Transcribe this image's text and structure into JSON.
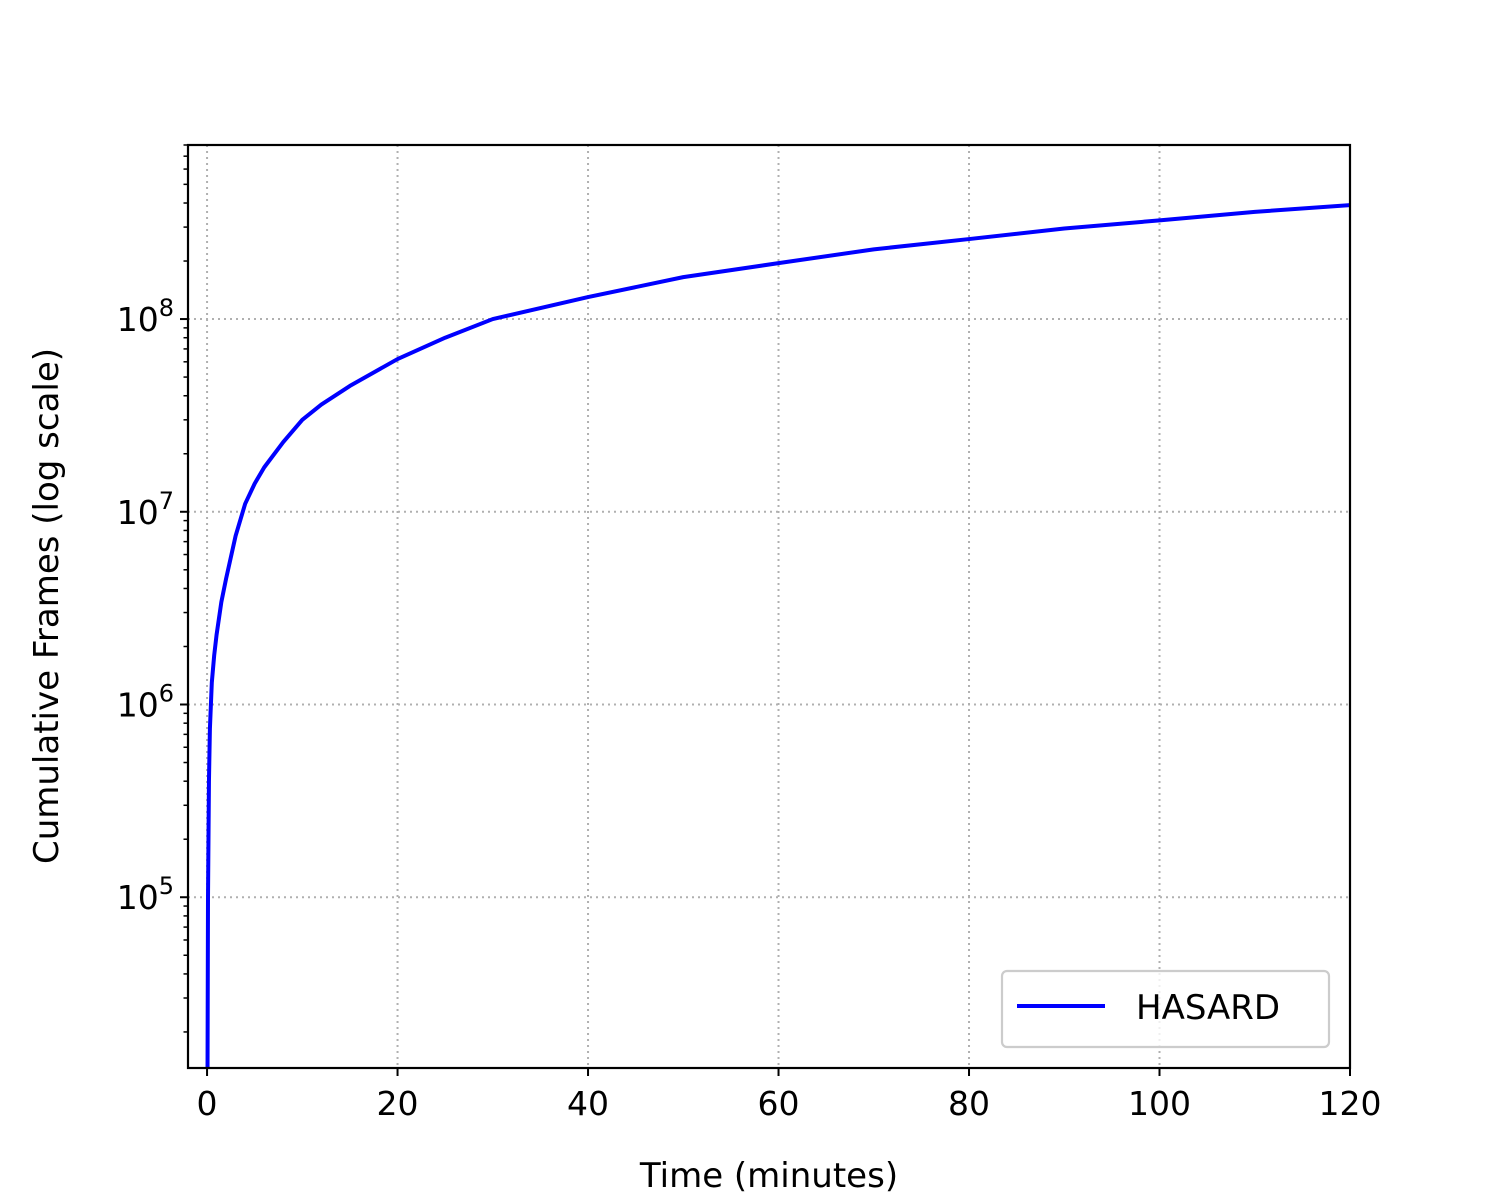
{
  "chart_data": {
    "type": "line",
    "xlabel": "Time (minutes)",
    "ylabel": "Cumulative Frames (log scale)",
    "yscale": "log",
    "xlim": [
      -2,
      120
    ],
    "ylim": [
      13000,
      800000000
    ],
    "xticks": [
      0,
      20,
      40,
      60,
      80,
      100,
      120
    ],
    "xtick_labels": [
      "0",
      "20",
      "40",
      "60",
      "80",
      "100",
      "120"
    ],
    "yticks": [
      100000,
      1000000,
      10000000,
      100000000
    ],
    "ytick_labels": [
      {
        "base": "10",
        "exp": "5"
      },
      {
        "base": "10",
        "exp": "6"
      },
      {
        "base": "10",
        "exp": "7"
      },
      {
        "base": "10",
        "exp": "8"
      }
    ],
    "grid": true,
    "legend_position": "lower right",
    "series": [
      {
        "name": "HASARD",
        "color": "#0000ff",
        "x": [
          0.05,
          0.1,
          0.2,
          0.3,
          0.5,
          0.75,
          1,
          1.5,
          2,
          3,
          4,
          5,
          6,
          8,
          10,
          12,
          15,
          20,
          25,
          30,
          40,
          50,
          60,
          70,
          80,
          90,
          100,
          110,
          120
        ],
        "y": [
          13000,
          100000,
          400000,
          750000,
          1300000,
          1800000,
          2300000,
          3400000,
          4500000,
          7500000,
          11000000,
          14000000,
          17000000,
          23000000,
          30000000,
          36000000,
          45000000,
          62000000,
          80000000,
          100000000,
          130000000,
          165000000,
          195000000,
          230000000,
          260000000,
          295000000,
          325000000,
          360000000,
          390000000
        ]
      }
    ]
  }
}
